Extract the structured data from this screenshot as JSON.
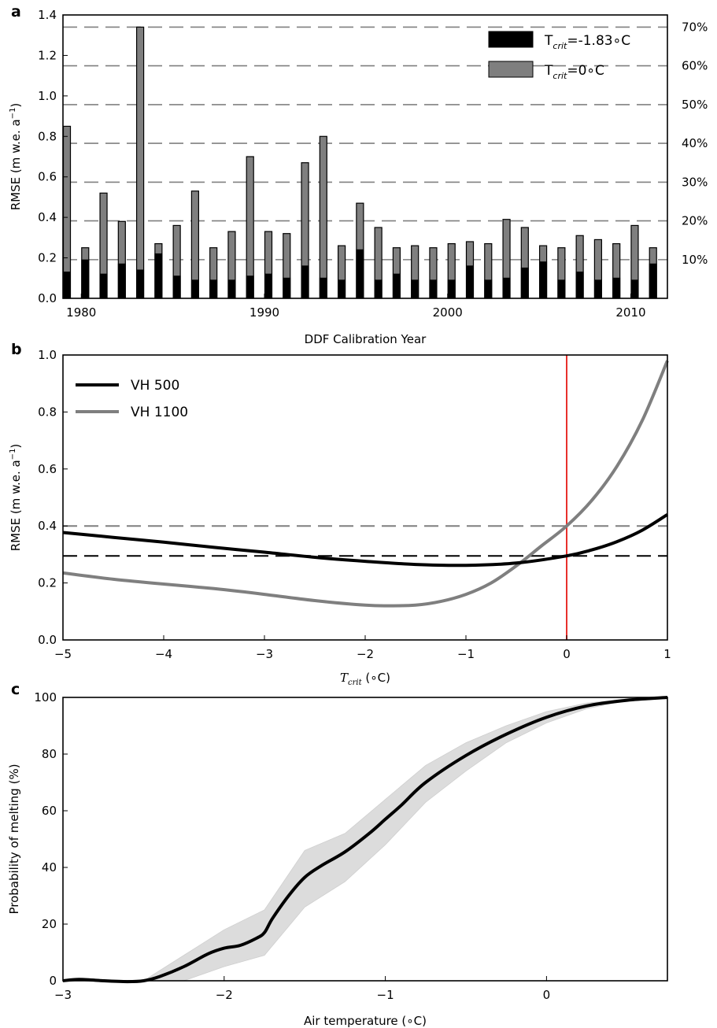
{
  "chart_data": [
    {
      "panel_label": "a",
      "type": "bar",
      "xlabel": "DDF Calibration Year",
      "ylabel": "RMSE (m w.e. a",
      "ylabel_sup": "−1",
      "ylabel_close": ")",
      "ylim": [
        0,
        1.4
      ],
      "xlim": [
        1979,
        2012
      ],
      "yticks": [
        "0.0",
        "0.2",
        "0.4",
        "0.6",
        "0.8",
        "1.0",
        "1.2",
        "1.4"
      ],
      "xticks": [
        "1980",
        "1990",
        "2000",
        "2010"
      ],
      "right_axis_ticks": [
        "10%",
        "20%",
        "30%",
        "40%",
        "50%",
        "60%",
        "70%"
      ],
      "right_axis_values": [
        0.191,
        0.383,
        0.574,
        0.766,
        0.957,
        1.149,
        1.34
      ],
      "legend_placement": "top-right",
      "categories": [
        1979,
        1980,
        1981,
        1982,
        1983,
        1984,
        1985,
        1986,
        1987,
        1988,
        1989,
        1990,
        1991,
        1992,
        1993,
        1994,
        1995,
        1996,
        1997,
        1998,
        1999,
        2000,
        2001,
        2002,
        2003,
        2004,
        2005,
        2006,
        2007,
        2008,
        2009,
        2010,
        2011
      ],
      "series": [
        {
          "name_main": "T",
          "name_sub": "crit",
          "name_rest": "=-1.83∘C",
          "color": "#000000",
          "values": [
            0.13,
            0.19,
            0.12,
            0.17,
            0.14,
            0.22,
            0.11,
            0.09,
            0.09,
            0.09,
            0.11,
            0.12,
            0.1,
            0.16,
            0.1,
            0.09,
            0.24,
            0.09,
            0.12,
            0.09,
            0.09,
            0.09,
            0.16,
            0.09,
            0.1,
            0.15,
            0.18,
            0.09,
            0.13,
            0.09,
            0.1,
            0.09,
            0.17
          ]
        },
        {
          "name_main": "T",
          "name_sub": "crit",
          "name_rest": "=0∘C",
          "color": "#7f7f7f",
          "values": [
            0.85,
            0.25,
            0.52,
            0.38,
            1.34,
            0.27,
            0.36,
            0.53,
            0.25,
            0.33,
            0.7,
            0.33,
            0.32,
            0.67,
            0.8,
            0.26,
            0.47,
            0.35,
            0.25,
            0.26,
            0.25,
            0.27,
            0.28,
            0.27,
            0.39,
            0.35,
            0.26,
            0.25,
            0.31,
            0.29,
            0.27,
            0.36,
            0.25
          ]
        }
      ]
    },
    {
      "panel_label": "b",
      "type": "line",
      "xlabel_main": "T",
      "xlabel_sub": "crit",
      "xlabel_rest": " (∘C)",
      "ylabel": "RMSE (m w.e. a",
      "ylabel_sup": "−1",
      "ylabel_close": ")",
      "xlim": [
        -5,
        1
      ],
      "ylim": [
        0,
        1.0
      ],
      "xticks": [
        "−5",
        "−4",
        "−3",
        "−2",
        "−1",
        "0",
        "1"
      ],
      "yticks": [
        "0.0",
        "0.2",
        "0.4",
        "0.6",
        "0.8",
        "1.0"
      ],
      "legend_placement": "top-left",
      "vertical_line": {
        "x": 0,
        "color": "#e8302c"
      },
      "reference_lines": [
        {
          "y": 0.4,
          "color": "#7f7f7f",
          "style": "dashed"
        },
        {
          "y": 0.295,
          "color": "#000000",
          "style": "dashed"
        }
      ],
      "series": [
        {
          "name": "VH 500",
          "color": "#000000",
          "x": [
            -5,
            -4.5,
            -4,
            -3.5,
            -3,
            -2.5,
            -2,
            -1.5,
            -1,
            -0.5,
            0,
            0.25,
            0.5,
            0.75,
            1
          ],
          "y": [
            0.377,
            0.36,
            0.343,
            0.325,
            0.308,
            0.29,
            0.276,
            0.265,
            0.262,
            0.27,
            0.295,
            0.316,
            0.345,
            0.385,
            0.44
          ]
        },
        {
          "name": "VH 1100",
          "color": "#7f7f7f",
          "x": [
            -5,
            -4.5,
            -4,
            -3.5,
            -3,
            -2.5,
            -2,
            -1.75,
            -1.5,
            -1.25,
            -1,
            -0.75,
            -0.5,
            -0.25,
            0,
            0.25,
            0.5,
            0.75,
            1
          ],
          "y": [
            0.235,
            0.213,
            0.196,
            0.18,
            0.16,
            0.138,
            0.122,
            0.12,
            0.122,
            0.135,
            0.16,
            0.2,
            0.26,
            0.33,
            0.4,
            0.49,
            0.61,
            0.77,
            0.98
          ]
        }
      ]
    },
    {
      "panel_label": "c",
      "type": "line",
      "xlabel": "Air temperature (∘C)",
      "ylabel": "Probability of melting (%)",
      "xlim": [
        -3,
        0.75
      ],
      "ylim": [
        0,
        100
      ],
      "xticks": [
        "−3",
        "−2",
        "−1",
        "0"
      ],
      "yticks": [
        "0",
        "20",
        "40",
        "60",
        "80",
        "100"
      ],
      "band_color": "#dcdcdc",
      "series": [
        {
          "name": "",
          "color": "#000000",
          "x": [
            -3,
            -2.9,
            -2.75,
            -2.6,
            -2.5,
            -2.4,
            -2.25,
            -2.1,
            -2,
            -1.9,
            -1.8,
            -1.75,
            -1.7,
            -1.6,
            -1.5,
            -1.4,
            -1.25,
            -1.1,
            -1,
            -0.9,
            -0.75,
            -0.5,
            -0.25,
            0,
            0.25,
            0.5,
            0.75
          ],
          "y": [
            0,
            0.5,
            0,
            -0.3,
            0,
            1.5,
            5,
            9.5,
            11.5,
            12.5,
            15,
            17,
            22,
            30,
            36.5,
            40.5,
            45.5,
            52,
            57,
            62,
            70,
            79.5,
            87,
            93,
            97,
            99,
            100
          ]
        }
      ],
      "band": {
        "x": [
          -2.6,
          -2.5,
          -2.25,
          -2,
          -1.75,
          -1.5,
          -1.25,
          -1,
          -0.75,
          -0.5,
          -0.25,
          0,
          0.25,
          0.5,
          0.75
        ],
        "lower": [
          0,
          0,
          0,
          5,
          9,
          26,
          35,
          48,
          63,
          74,
          84,
          91,
          96,
          99,
          100
        ],
        "upper": [
          0,
          0,
          9,
          18,
          25,
          46,
          52,
          64,
          76,
          84,
          90,
          95,
          98,
          99.5,
          100
        ]
      }
    }
  ]
}
